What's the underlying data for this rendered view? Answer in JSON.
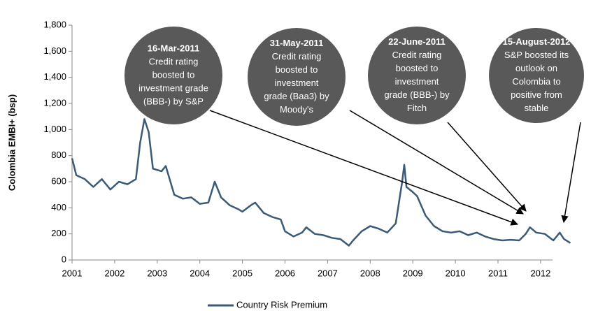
{
  "chart_data": {
    "type": "line",
    "y_label": "Colombia EMBI+ (bsp)",
    "xlim": [
      2001,
      2012.8
    ],
    "xticks": [
      2001,
      2002,
      2003,
      2004,
      2005,
      2006,
      2007,
      2008,
      2009,
      2010,
      2011,
      2012
    ],
    "ylim": [
      0,
      1800
    ],
    "yticks": [
      0,
      200,
      400,
      600,
      800,
      {
        "value": 1000,
        "label": "1,000"
      },
      {
        "value": 1200,
        "label": "1,200"
      },
      {
        "value": 1400,
        "label": "1,400"
      },
      {
        "value": 1600,
        "label": "1,600"
      },
      {
        "value": 1800,
        "label": "1,800"
      }
    ],
    "legend": "bottom",
    "series": [
      {
        "name": "Country Risk Premium",
        "color": "#3b5a78",
        "x": [
          2001.0,
          2001.1,
          2001.3,
          2001.5,
          2001.7,
          2001.9,
          2002.1,
          2002.3,
          2002.5,
          2002.6,
          2002.7,
          2002.8,
          2002.9,
          2003.1,
          2003.2,
          2003.4,
          2003.6,
          2003.8,
          2004.0,
          2004.2,
          2004.35,
          2004.5,
          2004.7,
          2004.9,
          2005.0,
          2005.2,
          2005.3,
          2005.5,
          2005.7,
          2005.9,
          2006.0,
          2006.2,
          2006.4,
          2006.5,
          2006.7,
          2006.9,
          2007.1,
          2007.3,
          2007.5,
          2007.6,
          2007.8,
          2008.0,
          2008.2,
          2008.4,
          2008.6,
          2008.75,
          2008.8,
          2008.85,
          2009.0,
          2009.1,
          2009.3,
          2009.5,
          2009.7,
          2009.9,
          2010.1,
          2010.3,
          2010.5,
          2010.7,
          2010.9,
          2011.1,
          2011.3,
          2011.5,
          2011.65,
          2011.75,
          2011.9,
          2012.1,
          2012.3,
          2012.45,
          2012.55,
          2012.7
        ],
        "values": [
          780,
          650,
          620,
          560,
          620,
          540,
          600,
          580,
          620,
          900,
          1080,
          980,
          700,
          680,
          720,
          500,
          470,
          480,
          430,
          440,
          600,
          480,
          420,
          390,
          370,
          420,
          440,
          360,
          330,
          310,
          220,
          180,
          210,
          250,
          200,
          190,
          170,
          160,
          110,
          150,
          220,
          260,
          240,
          210,
          280,
          600,
          730,
          560,
          520,
          490,
          340,
          260,
          220,
          210,
          220,
          190,
          210,
          180,
          160,
          150,
          155,
          150,
          200,
          250,
          210,
          200,
          150,
          210,
          160,
          130
        ]
      }
    ],
    "annotations": [
      {
        "title": "16-Mar-2011",
        "lines": [
          "Credit rating",
          "boosted to",
          "investment grade",
          "(BBB-) by S&P"
        ]
      },
      {
        "title": "31-May-2011",
        "lines": [
          "Credit rating",
          "boosted to",
          "investment",
          "grade (Baa3) by",
          "Moody's"
        ]
      },
      {
        "title": "22-June-2011",
        "lines": [
          "Credit rating",
          "boosted to",
          "investment",
          "grade (BBB-) by",
          "Fitch"
        ]
      },
      {
        "title": "15-August-2012",
        "lines": [
          "S&P boosted its",
          "outlook on",
          "Colombia to",
          "positive from",
          "stable"
        ]
      }
    ]
  }
}
